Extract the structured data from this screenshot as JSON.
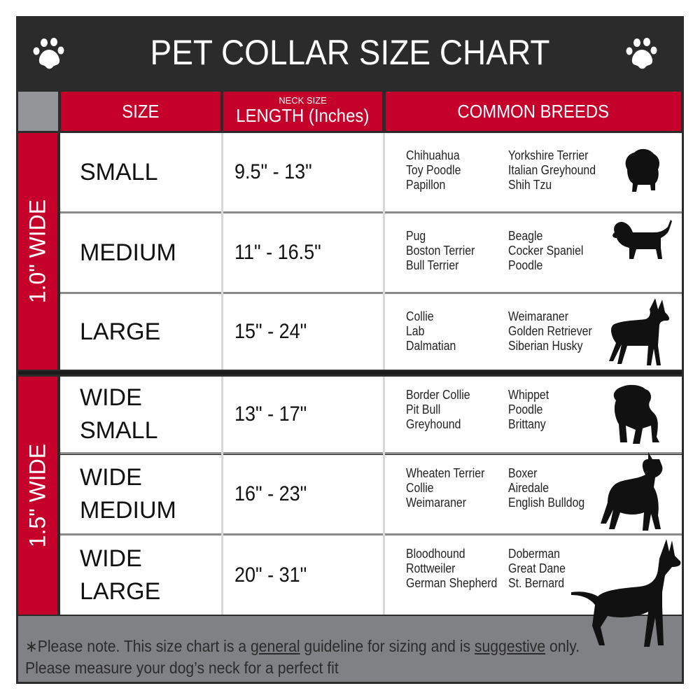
{
  "title": "PET COLLAR SIZE CHART",
  "header": {
    "size": "SIZE",
    "length_small": "NECK SIZE",
    "length": "LENGTH (Inches)",
    "breeds": "COMMON BREEDS"
  },
  "groups": [
    {
      "label": "1.0\" WIDE"
    },
    {
      "label": "1.5\" WIDE"
    }
  ],
  "rows": [
    {
      "size": [
        "SMALL"
      ],
      "length": "9.5\" - 13\"",
      "breeds_a": [
        "Chihuahua",
        "Toy Poodle",
        "Papillon"
      ],
      "breeds_b": [
        "Yorkshire Terrier",
        "Italian Greyhound",
        "Shih Tzu"
      ],
      "icon": "small-dog-silhouette-icon"
    },
    {
      "size": [
        "MEDIUM"
      ],
      "length": "11\" - 16.5\"",
      "breeds_a": [
        "Pug",
        "Boston Terrier",
        "Bull Terrier"
      ],
      "breeds_b": [
        "Beagle",
        "Cocker Spaniel",
        "Poodle"
      ],
      "icon": "beagle-silhouette-icon"
    },
    {
      "size": [
        "LARGE"
      ],
      "length": "15\" - 24\"",
      "breeds_a": [
        "Collie",
        "Lab",
        "Dalmatian"
      ],
      "breeds_b": [
        "Weimaraner",
        "Golden Retriever",
        "Siberian Husky"
      ],
      "icon": "husky-silhouette-icon"
    },
    {
      "size": [
        "WIDE",
        "SMALL"
      ],
      "length": "13\" - 17\"",
      "breeds_a": [
        "Border Collie",
        "Pit Bull",
        "Greyhound"
      ],
      "breeds_b": [
        "Whippet",
        "Poodle",
        "Brittany"
      ],
      "icon": "bulldog-silhouette-icon"
    },
    {
      "size": [
        "WIDE",
        "MEDIUM"
      ],
      "length": "16\" - 23\"",
      "breeds_a": [
        "Wheaten Terrier",
        "Collie",
        "Weimaraner"
      ],
      "breeds_b": [
        "Boxer",
        "Airedale",
        "English Bulldog"
      ],
      "icon": "pitbull-silhouette-icon"
    },
    {
      "size": [
        "WIDE",
        "LARGE"
      ],
      "length": "20\" - 31\"",
      "breeds_a": [
        "Bloodhound",
        "Rottweiler",
        "German Shepherd"
      ],
      "breeds_b": [
        "Doberman",
        "Great Dane",
        "St. Bernard"
      ],
      "icon": "doberman-silhouette-icon"
    }
  ],
  "footer": {
    "line1_a": "∗Please note. This size chart is a ",
    "line1_u1": "general",
    "line1_b": " guideline for sizing and is ",
    "line1_u2": "suggestive",
    "line1_c": " only.",
    "line2": "Please measure your dog’s neck for a perfect fit"
  },
  "colors": {
    "red": "#c4002b",
    "dark": "#2b2b2b",
    "gray": "#808184"
  }
}
